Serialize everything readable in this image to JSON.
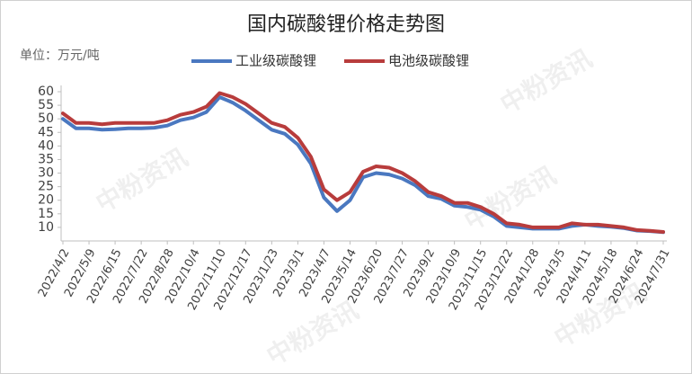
{
  "chart_data": {
    "type": "line",
    "title": "国内碳酸锂价格走势图",
    "unit_label": "单位：万元/吨",
    "watermark": "中粉资讯",
    "legend": "top",
    "categories": [
      "2022/4/2",
      null,
      "2022/5/9",
      null,
      "2022/6/15",
      null,
      "2022/7/22",
      null,
      "2022/8/28",
      null,
      "2022/10/4",
      null,
      "2022/11/10",
      null,
      "2022/12/17",
      null,
      "2023/1/23",
      null,
      "2023/3/1",
      null,
      "2023/4/7",
      null,
      "2023/5/14",
      null,
      "2023/6/20",
      null,
      "2023/7/27",
      null,
      "2023/9/2",
      null,
      "2023/10/9",
      null,
      "2023/11/15",
      null,
      "2023/12/22",
      null,
      "2024/1/28",
      null,
      "2024/3/5",
      null,
      "2024/4/11",
      null,
      "2024/5/18",
      null,
      "2024/6/24",
      null,
      "2024/7/31"
    ],
    "series": [
      {
        "name": "工业级碳酸锂",
        "color": "#4a78c0",
        "values": [
          50,
          46.5,
          46.5,
          46,
          46.2,
          46.5,
          46.5,
          46.7,
          47.5,
          49.5,
          50.5,
          52.5,
          58,
          56,
          53,
          49.5,
          46,
          44.5,
          40.5,
          33.5,
          21,
          16,
          20,
          28.5,
          30,
          29.5,
          28,
          25.5,
          21.5,
          20.5,
          18,
          17.5,
          16.5,
          14,
          10.5,
          10,
          9.5,
          9.5,
          9.5,
          10.5,
          11,
          10.5,
          10.2,
          9.7,
          8.8,
          8.6,
          8.2
        ]
      },
      {
        "name": "电池级碳酸锂",
        "color": "#b83c3c",
        "values": [
          52,
          48.5,
          48.5,
          48,
          48.5,
          48.5,
          48.5,
          48.5,
          49.5,
          51.5,
          52.5,
          54.5,
          59.5,
          58,
          55.5,
          52,
          48.5,
          47,
          43,
          36,
          24,
          20,
          23,
          30.5,
          32.5,
          32,
          30,
          27,
          23,
          21.5,
          19,
          19,
          17.5,
          15,
          11.5,
          11,
          10,
          10,
          10,
          11.5,
          11,
          11,
          10.5,
          10,
          9,
          8.7,
          8.3
        ]
      }
    ],
    "ylim": [
      5,
      60
    ],
    "yticks": [
      10,
      15,
      20,
      25,
      30,
      35,
      40,
      45,
      50,
      55,
      60
    ]
  }
}
